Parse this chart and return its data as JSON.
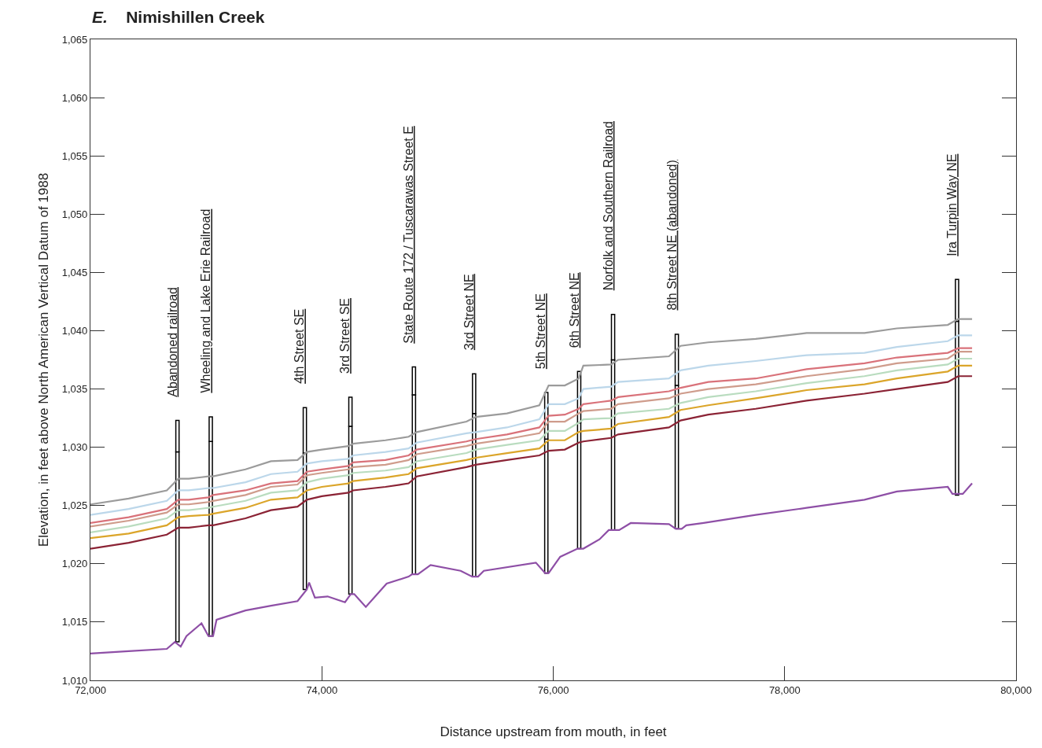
{
  "chart_data": {
    "type": "line",
    "title": "E. Nimishillen Creek",
    "xlabel": "Distance upstream from mouth, in feet",
    "ylabel": "Elevation, in feet above North American Vertical Datum of 1988",
    "x": [
      72000,
      72330,
      72660,
      72760,
      72850,
      73020,
      73060,
      73340,
      73560,
      73790,
      73870,
      74000,
      74230,
      74270,
      74550,
      74750,
      74820,
      75250,
      75330,
      75600,
      75880,
      75960,
      76100,
      76220,
      76260,
      76500,
      76560,
      77000,
      77100,
      77340,
      77750,
      78190,
      78690,
      78970,
      79410,
      79500,
      79620
    ],
    "series": [
      {
        "color": "#9b9b9b",
        "values": [
          1025.1,
          1025.6,
          1026.3,
          1027.3,
          1027.3,
          1027.5,
          1027.5,
          1028.1,
          1028.8,
          1028.9,
          1029.6,
          1029.8,
          1030.1,
          1030.3,
          1030.6,
          1030.9,
          1031.3,
          1032.2,
          1032.6,
          1032.9,
          1033.6,
          1035.3,
          1035.3,
          1035.9,
          1037.0,
          1037.1,
          1037.5,
          1037.8,
          1038.7,
          1039.0,
          1039.3,
          1039.8,
          1039.8,
          1040.2,
          1040.5,
          1041.0,
          1041.0
        ]
      },
      {
        "color": "#bcd7ea",
        "values": [
          1024.2,
          1024.7,
          1025.4,
          1026.3,
          1026.3,
          1026.5,
          1026.5,
          1027.0,
          1027.7,
          1027.9,
          1028.6,
          1028.8,
          1029.0,
          1029.3,
          1029.6,
          1029.9,
          1030.4,
          1031.2,
          1031.3,
          1031.7,
          1032.4,
          1033.7,
          1033.7,
          1034.2,
          1035.0,
          1035.2,
          1035.6,
          1035.9,
          1036.6,
          1037.0,
          1037.4,
          1037.9,
          1038.1,
          1038.6,
          1039.1,
          1039.6,
          1039.6
        ]
      },
      {
        "color": "#d9727a",
        "values": [
          1023.5,
          1024.0,
          1024.7,
          1025.5,
          1025.5,
          1025.7,
          1025.9,
          1026.3,
          1026.9,
          1027.1,
          1027.9,
          1028.1,
          1028.4,
          1028.7,
          1028.9,
          1029.3,
          1029.8,
          1030.5,
          1030.7,
          1031.1,
          1031.7,
          1032.7,
          1032.8,
          1033.3,
          1033.7,
          1034.0,
          1034.3,
          1034.8,
          1035.1,
          1035.6,
          1035.9,
          1036.7,
          1037.2,
          1037.7,
          1038.1,
          1038.5,
          1038.5
        ]
      },
      {
        "color": "#cf9c8c",
        "values": [
          1023.2,
          1023.7,
          1024.4,
          1025.1,
          1025.1,
          1025.3,
          1025.4,
          1025.9,
          1026.6,
          1026.8,
          1027.6,
          1027.8,
          1028.1,
          1028.3,
          1028.5,
          1028.9,
          1029.4,
          1030.1,
          1030.3,
          1030.7,
          1031.2,
          1032.2,
          1032.2,
          1032.9,
          1033.1,
          1033.3,
          1033.7,
          1034.2,
          1034.6,
          1035.0,
          1035.4,
          1036.1,
          1036.7,
          1037.2,
          1037.6,
          1038.2,
          1038.2
        ]
      },
      {
        "color": "#b9dcbf",
        "values": [
          1022.7,
          1023.2,
          1023.9,
          1024.6,
          1024.6,
          1024.8,
          1024.9,
          1025.4,
          1026.1,
          1026.3,
          1027.0,
          1027.3,
          1027.6,
          1027.8,
          1028.0,
          1028.3,
          1028.8,
          1029.5,
          1029.8,
          1030.2,
          1030.6,
          1031.4,
          1031.4,
          1032.1,
          1032.4,
          1032.5,
          1032.9,
          1033.3,
          1033.8,
          1034.3,
          1034.8,
          1035.5,
          1036.1,
          1036.6,
          1037.1,
          1037.6,
          1037.6
        ]
      },
      {
        "color": "#dba52a",
        "values": [
          1022.2,
          1022.6,
          1023.3,
          1024.0,
          1024.1,
          1024.2,
          1024.3,
          1024.8,
          1025.5,
          1025.7,
          1026.3,
          1026.6,
          1026.9,
          1027.1,
          1027.4,
          1027.7,
          1028.2,
          1028.9,
          1029.1,
          1029.5,
          1029.9,
          1030.6,
          1030.6,
          1031.3,
          1031.4,
          1031.6,
          1032.0,
          1032.6,
          1033.2,
          1033.6,
          1034.2,
          1034.9,
          1035.4,
          1035.9,
          1036.5,
          1037.0,
          1037.0
        ]
      },
      {
        "color": "#8b2335",
        "values": [
          1021.3,
          1021.8,
          1022.5,
          1023.1,
          1023.1,
          1023.3,
          1023.3,
          1023.9,
          1024.6,
          1024.9,
          1025.5,
          1025.8,
          1026.1,
          1026.3,
          1026.6,
          1026.9,
          1027.5,
          1028.3,
          1028.5,
          1028.9,
          1029.3,
          1029.7,
          1029.8,
          1030.4,
          1030.5,
          1030.8,
          1031.1,
          1031.7,
          1032.3,
          1032.8,
          1033.3,
          1034.0,
          1034.6,
          1035.0,
          1035.6,
          1036.1,
          1036.1
        ]
      },
      {
        "color": "#8e4fa6",
        "x": [
          72000,
          72330,
          72660,
          72730,
          72780,
          72830,
          72960,
          73020,
          73060,
          73090,
          73340,
          73560,
          73790,
          73870,
          73890,
          73940,
          74050,
          74200,
          74250,
          74280,
          74380,
          74560,
          74750,
          74780,
          74830,
          74940,
          75200,
          75300,
          75350,
          75400,
          75850,
          75930,
          75960,
          76060,
          76210,
          76260,
          76400,
          76480,
          76570,
          76670,
          77000,
          77060,
          77110,
          77150,
          77300,
          77750,
          78190,
          78690,
          78970,
          79410,
          79450,
          79540,
          79620
        ],
        "values": [
          1012.3,
          1012.5,
          1012.7,
          1013.3,
          1012.9,
          1013.8,
          1014.9,
          1013.8,
          1013.8,
          1015.2,
          1016.0,
          1016.4,
          1016.8,
          1017.8,
          1018.4,
          1017.1,
          1017.2,
          1016.7,
          1017.4,
          1017.4,
          1016.3,
          1018.3,
          1018.9,
          1019.1,
          1019.1,
          1019.9,
          1019.4,
          1018.9,
          1018.9,
          1019.4,
          1020.1,
          1019.2,
          1019.2,
          1020.6,
          1021.3,
          1021.3,
          1022.1,
          1022.9,
          1022.9,
          1023.5,
          1023.4,
          1023.0,
          1023.0,
          1023.3,
          1023.5,
          1024.2,
          1024.8,
          1025.5,
          1026.2,
          1026.6,
          1026.0,
          1026.0,
          1026.9
        ]
      },
      {
        "type": "bar",
        "color": "#ffffff",
        "x": [
          72752,
          73040,
          73853,
          74247,
          74796,
          75316,
          75940,
          76224,
          76517,
          77068,
          79490
        ],
        "base": [
          1013.3,
          1013.8,
          1017.8,
          1017.4,
          1019.1,
          1018.9,
          1019.2,
          1021.3,
          1022.9,
          1023.0,
          1025.9
        ],
        "values": [
          16.3,
          16.7,
          11.7,
          14.4,
          15.4,
          14.0,
          11.5,
          10.8,
          14.6,
          12.3,
          14.9
        ]
      },
      {
        "type": "bar",
        "color": "#ffffff",
        "x": [
          72752,
          73040,
          73853,
          74247,
          74796,
          75316,
          75940,
          76224,
          76517,
          77068,
          79490
        ],
        "base": [
          1029.6,
          1030.5,
          1029.5,
          1031.8,
          1034.5,
          1032.9,
          1030.7,
          1032.1,
          1037.5,
          1035.3,
          1040.8
        ],
        "values": [
          2.7,
          2.1,
          3.9,
          2.5,
          2.4,
          3.4,
          4.0,
          4.4,
          3.9,
          4.4,
          3.6
        ]
      }
    ],
    "annotations": [
      {
        "text": "Abandoned railroad",
        "x": 72752,
        "y": 1032.3
      },
      {
        "text": "Wheeling and Lake Erie Railroad",
        "x": 73040,
        "y": 1032.6
      },
      {
        "text": "4th Street SE",
        "x": 73853,
        "y": 1033.4
      },
      {
        "text": "3rd Street SE",
        "x": 74247,
        "y": 1034.3
      },
      {
        "text": "State Route 172 / Tuscarawas Street E",
        "x": 74796,
        "y": 1036.9
      },
      {
        "text": "3rd Street NE",
        "x": 75316,
        "y": 1036.3
      },
      {
        "text": "5th Street NE",
        "x": 75940,
        "y": 1034.7
      },
      {
        "text": "6th Street NE",
        "x": 76224,
        "y": 1036.5
      },
      {
        "text": "Norfolk and Southern Railroad",
        "x": 76517,
        "y": 1041.4
      },
      {
        "text": "8th Street NE (abandoned)",
        "x": 77068,
        "y": 1039.7
      },
      {
        "text": "Ira Turpin Way NE",
        "x": 79490,
        "y": 1044.4
      }
    ],
    "xlim": [
      72000,
      80000
    ],
    "xticks": [
      {
        "value": 72000,
        "label": "72,000"
      },
      {
        "value": 74000,
        "label": "74,000"
      },
      {
        "value": 76000,
        "label": "76,000"
      },
      {
        "value": 78000,
        "label": "78,000"
      },
      {
        "value": 80000,
        "label": "80,000"
      }
    ],
    "ylim": [
      1010,
      1065
    ],
    "yticks": [
      {
        "value": 1010,
        "label": "1,010"
      },
      {
        "value": 1015,
        "label": "1,015"
      },
      {
        "value": 1020,
        "label": "1,020"
      },
      {
        "value": 1025,
        "label": "1,025"
      },
      {
        "value": 1030,
        "label": "1,030"
      },
      {
        "value": 1035,
        "label": "1,035"
      },
      {
        "value": 1040,
        "label": "1,040"
      },
      {
        "value": 1045,
        "label": "1,045"
      },
      {
        "value": 1050,
        "label": "1,050"
      },
      {
        "value": 1055,
        "label": "1,055"
      },
      {
        "value": 1060,
        "label": "1,060"
      },
      {
        "value": 1065,
        "label": "1,065"
      }
    ]
  }
}
